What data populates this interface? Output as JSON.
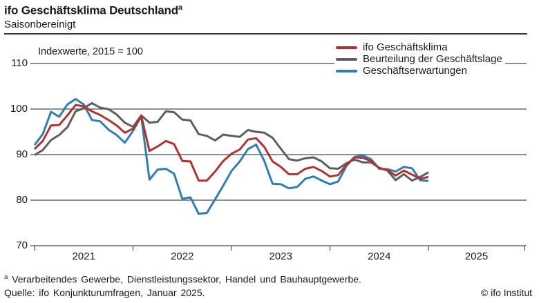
{
  "header": {
    "title": "ifo Geschäftsklima Deutschland",
    "title_footnote_marker": "a",
    "subtitle": "Saisonbereinigt"
  },
  "chart_data": {
    "type": "line",
    "title": "ifo Geschäftsklima Deutschland (saisonbereinigt)",
    "unit_label": "Indexwerte, 2015 = 100",
    "x_start_month": "2021-01",
    "x_end_month": "2025-01",
    "x_year_ticks": [
      "2021",
      "2022",
      "2023",
      "2024",
      "2025"
    ],
    "y_ticks": [
      "110",
      "100",
      "90",
      "80",
      "70"
    ],
    "ylim": [
      70,
      110
    ],
    "grid": "horizontal",
    "legend_position": "top-right",
    "series": [
      {
        "name": "ifo Geschäftsklima",
        "color": "#b13331",
        "values": [
          91.2,
          93.0,
          96.4,
          96.5,
          98.6,
          100.9,
          100.6,
          99.5,
          98.7,
          97.6,
          96.4,
          94.8,
          95.7,
          98.5,
          90.8,
          91.8,
          93.0,
          92.3,
          88.6,
          88.5,
          84.3,
          84.3,
          86.3,
          88.6,
          90.2,
          91.1,
          93.3,
          93.6,
          91.7,
          88.5,
          87.3,
          85.7,
          85.7,
          86.9,
          87.3,
          86.4,
          85.2,
          85.5,
          87.8,
          89.4,
          89.3,
          88.6,
          87.0,
          86.6,
          85.4,
          86.5,
          85.6,
          84.7,
          85.1
        ]
      },
      {
        "name": "Beurteilung der Geschäftslage",
        "color": "#5e5e5e",
        "values": [
          89.9,
          91.0,
          93.2,
          94.3,
          96.0,
          99.5,
          100.2,
          101.3,
          100.3,
          100.0,
          98.8,
          97.0,
          96.1,
          98.6,
          97.0,
          97.2,
          99.5,
          99.3,
          97.7,
          97.5,
          94.5,
          94.1,
          93.1,
          94.4,
          94.1,
          93.9,
          95.4,
          95.0,
          94.8,
          93.7,
          91.3,
          89.0,
          88.7,
          89.2,
          89.4,
          88.5,
          87.0,
          86.9,
          88.1,
          88.9,
          88.3,
          88.3,
          87.1,
          86.5,
          84.4,
          85.7,
          84.3,
          85.1,
          86.1
        ]
      },
      {
        "name": "Geschäftserwartungen",
        "color": "#2e7eb3",
        "values": [
          92.1,
          94.5,
          99.4,
          98.3,
          101.0,
          102.2,
          101.0,
          97.6,
          97.3,
          95.5,
          94.3,
          92.6,
          95.2,
          98.4,
          84.5,
          86.7,
          86.9,
          85.8,
          80.3,
          80.6,
          77.0,
          77.2,
          80.2,
          83.2,
          86.4,
          88.5,
          91.2,
          92.2,
          88.6,
          83.6,
          83.5,
          82.6,
          82.9,
          84.7,
          85.2,
          84.3,
          83.5,
          84.1,
          87.5,
          89.5,
          89.8,
          89.0,
          86.9,
          86.8,
          86.3,
          87.3,
          87.0,
          84.4,
          84.2
        ]
      }
    ]
  },
  "footer": {
    "footnote_marker": "a",
    "footnote_text": "Verarbeitendes Gewerbe, Dienstleistungssektor, Handel und Bauhauptgewerbe.",
    "source_text": "Quelle: ifo Konjunkturumfragen, Januar 2025.",
    "copyright_text": "© ifo Institut"
  }
}
